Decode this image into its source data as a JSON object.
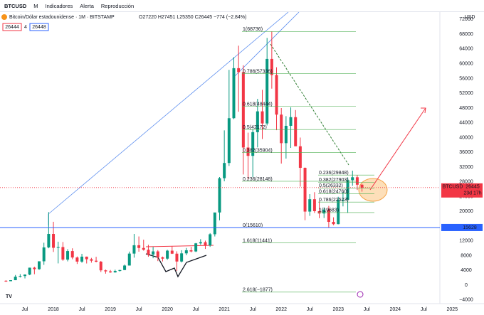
{
  "toolbar": {
    "symbol": "BTCUSD",
    "interval": "M",
    "indicators": "Indicadores",
    "alert": "Alerta",
    "replay": "Reproducción"
  },
  "chart_data": {
    "type": "candlestick",
    "title": "Bitcoin/Dólar estadounidense · 1M · BITSTAMP",
    "ohlc_text": "O27220 H27451 L25350 C26445 −774 (−2.84%)",
    "bid": "26444",
    "spread": "4",
    "ask": "26448",
    "currency": "USD",
    "open": [
      1190,
      1080,
      1350,
      2300,
      2480,
      2870,
      4740,
      4340,
      6470,
      10230,
      13880,
      10130,
      10330,
      6930,
      9240,
      7500,
      6390,
      7730,
      7030,
      6630,
      6370,
      4020,
      3740,
      3460,
      3850,
      4100,
      5320,
      8560,
      10820,
      10080,
      9600,
      8290,
      9150,
      7550,
      7190,
      9350,
      8540,
      6410,
      8620,
      9450,
      9140,
      11330,
      11650,
      10780,
      13800,
      19700,
      28990,
      33110,
      45240,
      58800,
      57720,
      37300,
      35040,
      41460,
      47100,
      43820,
      61300,
      56950,
      46220,
      38480,
      43180,
      45530,
      37640,
      31800,
      19940,
      23290,
      20050,
      19420,
      20490,
      17160,
      16540,
      23140,
      23150,
      28460,
      29240,
      27220
    ],
    "high": [
      1350,
      1350,
      2760,
      3000,
      2930,
      4750,
      5000,
      6470,
      11500,
      19800,
      17180,
      11780,
      11700,
      9760,
      9990,
      7780,
      8500,
      7750,
      7400,
      7690,
      6570,
      4240,
      4120,
      4200,
      4150,
      5600,
      9100,
      13880,
      13200,
      12330,
      10950,
      10370,
      9500,
      7750,
      9580,
      10500,
      9180,
      9470,
      10080,
      10380,
      11440,
      12470,
      12070,
      14100,
      19480,
      29300,
      41950,
      58350,
      61780,
      64900,
      59600,
      41330,
      42320,
      50500,
      52950,
      67000,
      68736,
      59050,
      47990,
      45800,
      48200,
      47450,
      40000,
      31900,
      24670,
      25200,
      22800,
      21080,
      21480,
      18390,
      23950,
      25250,
      29200,
      31030,
      29840,
      27451
    ],
    "low": [
      890,
      1080,
      1350,
      2080,
      1830,
      2700,
      2970,
      4160,
      5500,
      10000,
      9000,
      5900,
      6600,
      6450,
      7030,
      5750,
      6070,
      5880,
      6100,
      6180,
      3560,
      3120,
      3350,
      3390,
      3700,
      4080,
      5320,
      7460,
      9070,
      9350,
      7700,
      7300,
      6520,
      6430,
      6870,
      8450,
      3850,
      6150,
      8110,
      8900,
      8970,
      10950,
      9820,
      10380,
      13200,
      17570,
      28150,
      32300,
      45000,
      47000,
      30000,
      28800,
      29280,
      37330,
      39600,
      43280,
      53250,
      42000,
      32950,
      34300,
      37200,
      37700,
      26700,
      17600,
      18780,
      19560,
      18150,
      18200,
      15480,
      16260,
      16500,
      21350,
      19570,
      26950,
      25800,
      25350
    ],
    "close": [
      1080,
      1350,
      2300,
      2480,
      2870,
      4740,
      4340,
      6470,
      10230,
      13880,
      10130,
      10330,
      6930,
      9240,
      7500,
      6390,
      7730,
      7030,
      6630,
      6370,
      4020,
      3740,
      3460,
      3850,
      4100,
      5320,
      8560,
      10820,
      10080,
      9600,
      8290,
      9150,
      7550,
      7190,
      9350,
      8540,
      6410,
      8620,
      9450,
      9140,
      11330,
      11650,
      10780,
      13800,
      19700,
      28990,
      33110,
      45240,
      58800,
      57720,
      37300,
      35040,
      41460,
      47100,
      43820,
      61300,
      56950,
      46220,
      38480,
      43180,
      45530,
      37640,
      31800,
      19940,
      23290,
      20050,
      19420,
      20490,
      17160,
      16540,
      23140,
      23150,
      28460,
      29240,
      27220,
      26445
    ],
    "up_color": "#089981",
    "down_color": "#f23645",
    "ylim": [
      -5000,
      74000
    ],
    "yticks": [
      72000,
      68000,
      64000,
      60000,
      56000,
      52000,
      48000,
      44000,
      40000,
      36000,
      32000,
      28000,
      24000,
      20000,
      16000,
      12000,
      8000,
      4000,
      {
        "value": 0,
        "label": "0"
      },
      {
        "value": -4000,
        "label": "−4000"
      }
    ],
    "xtick_labels": [
      "Jul",
      "2018",
      "Jul",
      "2019",
      "Jul",
      "2020",
      "Jul",
      "2021",
      "Jul",
      "2022",
      "Jul",
      "2023",
      "Jul",
      "2024",
      "Jul",
      "2025"
    ],
    "last_price": {
      "symbol": "BTCUSD",
      "value": 26445,
      "countdown": "23d 17h"
    },
    "support": {
      "value": 15628
    },
    "fib_main": [
      {
        "label": "1(68736)",
        "value": 68736
      },
      {
        "label": "0.786(57336)",
        "value": 57336
      },
      {
        "label": "0.618(48444)",
        "value": 48444
      },
      {
        "label": "0.5(42172)",
        "value": 42172
      },
      {
        "label": "0.382(35904)",
        "value": 35904
      },
      {
        "label": "0.236(28148)",
        "value": 28148
      },
      {
        "label": "0(15610)",
        "value": 15610
      },
      {
        "label": "1.618(11441)",
        "value": 11441
      },
      {
        "label": "2.618(−1877)",
        "value": -1877
      }
    ],
    "fib_small": [
      {
        "label": "0.236(29848)",
        "value": 29848
      },
      {
        "label": "0.382(27903)",
        "value": 27903
      },
      {
        "label": "0.5(26332)",
        "value": 26332
      },
      {
        "label": "0.618(24760)",
        "value": 24760
      },
      {
        "label": "0.786(22523)",
        "value": 22523
      },
      {
        "label": "1(19683)",
        "value": 19683
      }
    ]
  }
}
